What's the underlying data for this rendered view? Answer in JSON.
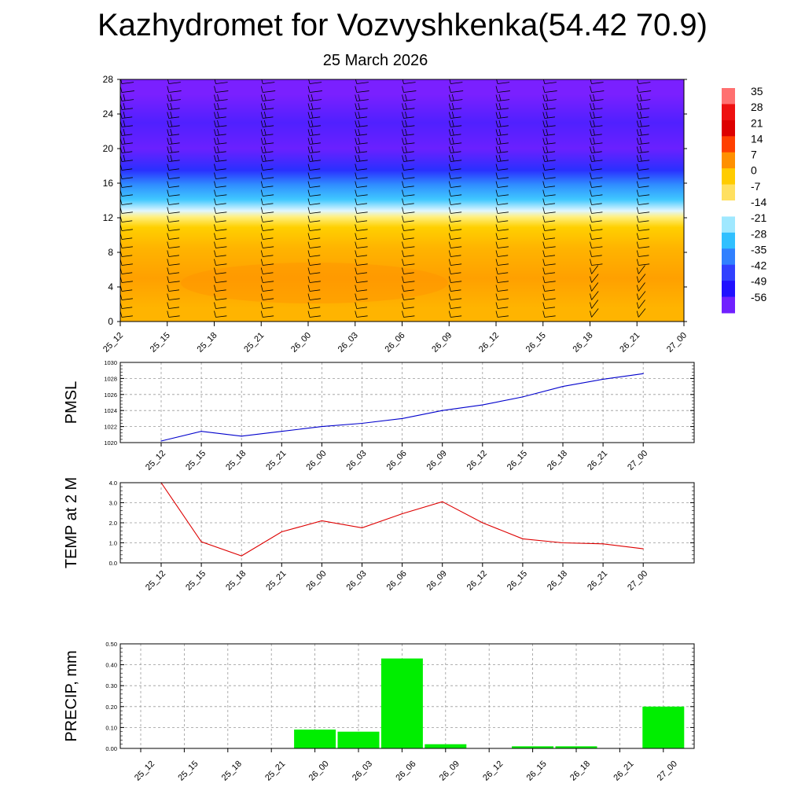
{
  "page": {
    "title": "Kazhydromet for Vozvyshkenka(54.42 70.9)",
    "subtitle": "25 March 2026"
  },
  "colors": {
    "pmsl_line": "#0000cc",
    "temp_line": "#dd0000",
    "precip_bar": "#00ee00",
    "grid": "#999999"
  },
  "chart_data": [
    {
      "id": "cross_section",
      "type": "heatmap",
      "title": "",
      "xlabel": "",
      "ylabel": "",
      "x_ticks": [
        "25_12",
        "25_15",
        "25_18",
        "25_21",
        "26_00",
        "26_03",
        "26_06",
        "26_09",
        "26_12",
        "26_15",
        "26_18",
        "26_21",
        "27_00"
      ],
      "y_ticks": [
        0,
        4,
        8,
        12,
        16,
        20,
        24,
        28
      ],
      "ylim": [
        0,
        28
      ],
      "colorbar": {
        "labels": [
          "35",
          "28",
          "21",
          "14",
          "7",
          "0",
          "-7",
          "-14",
          "-21",
          "-28",
          "-35",
          "-42",
          "-49",
          "-56"
        ],
        "palette": [
          "#ff7070",
          "#ee1010",
          "#dd0000",
          "#ff4000",
          "#ff9000",
          "#ffcc00",
          "#ffe060",
          "#ffffff",
          "#9fe8ff",
          "#30c0ff",
          "#3080ff",
          "#3040ff",
          "#2010ff",
          "#7020ff"
        ]
      },
      "bands": [
        {
          "from": 0,
          "to": 3,
          "color": "#ffb400"
        },
        {
          "from": 3,
          "to": 7,
          "color": "#ffa000"
        },
        {
          "from": 7,
          "to": 10,
          "color": "#ffb400"
        },
        {
          "from": 10,
          "to": 11.8,
          "color": "#ffd000"
        },
        {
          "from": 11.8,
          "to": 12.4,
          "color": "#fff080"
        },
        {
          "from": 12.4,
          "to": 13.2,
          "color": "#e0f6ff"
        },
        {
          "from": 13.2,
          "to": 15,
          "color": "#40c8ff"
        },
        {
          "from": 15,
          "to": 16.5,
          "color": "#3090ff"
        },
        {
          "from": 16.5,
          "to": 18.5,
          "color": "#2a30ff"
        },
        {
          "from": 18.5,
          "to": 21.5,
          "color": "#6a20ff"
        },
        {
          "from": 21.5,
          "to": 24.5,
          "color": "#5020ff"
        },
        {
          "from": 24.5,
          "to": 28,
          "color": "#7a20ff"
        }
      ]
    },
    {
      "id": "pmsl",
      "type": "line",
      "ylabel": "PMSL",
      "x": [
        "25_12",
        "25_15",
        "25_18",
        "25_21",
        "26_00",
        "26_03",
        "26_06",
        "26_09",
        "26_12",
        "26_15",
        "26_18",
        "26_21",
        "27_00"
      ],
      "y_ticks": [
        "1020",
        "1022",
        "1024",
        "1026",
        "1028",
        "1030"
      ],
      "ylim": [
        1020,
        1030
      ],
      "values": [
        1020.2,
        1021.4,
        1020.8,
        1021.4,
        1022.0,
        1022.4,
        1023.0,
        1024.0,
        1024.7,
        1025.7,
        1027.0,
        1027.9,
        1028.6
      ]
    },
    {
      "id": "temp",
      "type": "line",
      "ylabel": "TEMP at 2 M",
      "x": [
        "25_12",
        "25_15",
        "25_18",
        "25_21",
        "26_00",
        "26_03",
        "26_06",
        "26_09",
        "26_12",
        "26_15",
        "26_18",
        "26_21",
        "27_00"
      ],
      "y_ticks": [
        "0.0",
        "1.0",
        "2.0",
        "3.0",
        "4.0"
      ],
      "ylim": [
        0,
        4
      ],
      "values": [
        4.0,
        1.05,
        0.35,
        1.55,
        2.1,
        1.75,
        2.45,
        3.05,
        2.0,
        1.2,
        1.0,
        0.95,
        0.7
      ]
    },
    {
      "id": "precip",
      "type": "bar",
      "ylabel": "PRECIP, mm",
      "categories": [
        "25_12",
        "25_15",
        "25_18",
        "25_21",
        "26_00",
        "26_03",
        "26_06",
        "26_09",
        "26_12",
        "26_15",
        "26_18",
        "26_21",
        "27_00"
      ],
      "y_ticks": [
        "0.00",
        "0.10",
        "0.20",
        "0.30",
        "0.40",
        "0.50"
      ],
      "ylim": [
        0,
        0.5
      ],
      "values": [
        0,
        0,
        0,
        0,
        0.09,
        0.08,
        0.43,
        0.02,
        0,
        0.01,
        0.01,
        0,
        0.2
      ]
    }
  ]
}
